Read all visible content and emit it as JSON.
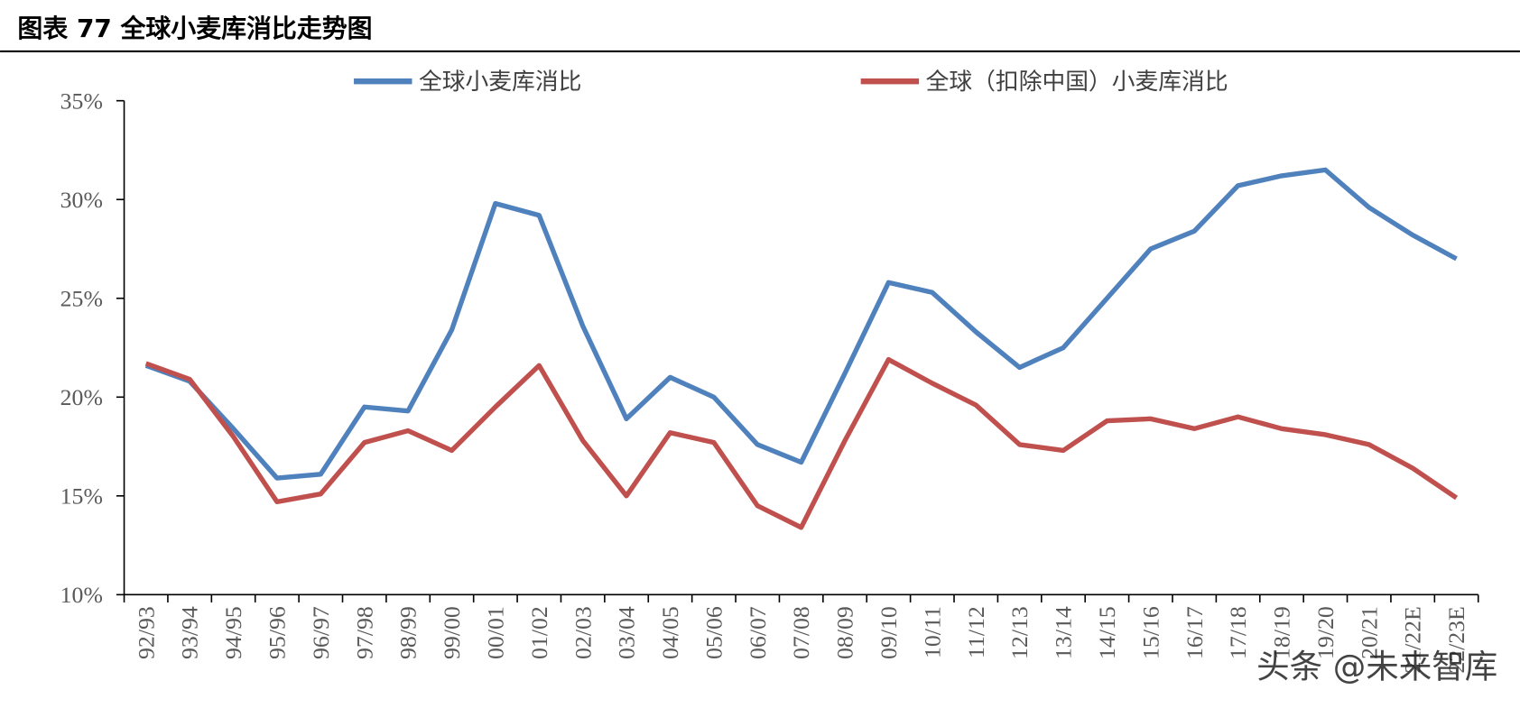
{
  "chart_data": {
    "type": "line",
    "title": "图表 77  全球小麦库消比走势图",
    "watermark": "头条 @未来智库",
    "categories": [
      "92/93",
      "93/94",
      "94/95",
      "95/96",
      "96/97",
      "97/98",
      "98/99",
      "99/00",
      "00/01",
      "01/02",
      "02/03",
      "03/04",
      "04/05",
      "05/06",
      "06/07",
      "07/08",
      "08/09",
      "09/10",
      "10/11",
      "11/12",
      "12/13",
      "13/14",
      "14/15",
      "15/16",
      "16/17",
      "17/18",
      "18/19",
      "19/20",
      "20/21",
      "21/22E",
      "22/23E"
    ],
    "series": [
      {
        "name": "全球小麦库消比",
        "color": "#4f81bd",
        "values": [
          21.6,
          20.8,
          18.4,
          15.9,
          16.1,
          19.5,
          19.3,
          23.4,
          29.8,
          29.2,
          23.6,
          18.9,
          21.0,
          20.0,
          17.6,
          16.7,
          21.2,
          25.8,
          25.3,
          23.3,
          21.5,
          22.5,
          25.0,
          27.5,
          28.4,
          30.7,
          31.2,
          31.5,
          29.6,
          28.2,
          27.0
        ]
      },
      {
        "name": "全球（扣除中国）小麦库消比",
        "color": "#c0504d",
        "values": [
          21.7,
          20.9,
          18.0,
          14.7,
          15.1,
          17.7,
          18.3,
          17.3,
          19.5,
          21.6,
          17.8,
          15.0,
          18.2,
          17.7,
          14.5,
          13.4,
          17.8,
          21.9,
          20.7,
          19.6,
          17.6,
          17.3,
          18.8,
          18.9,
          18.4,
          19.0,
          18.4,
          18.1,
          17.6,
          16.4,
          14.9
        ]
      }
    ],
    "ylim": [
      10,
      35
    ],
    "yticks": [
      {
        "value": 10,
        "label": "10%"
      },
      {
        "value": 15,
        "label": "15%"
      },
      {
        "value": 20,
        "label": "20%"
      },
      {
        "value": 25,
        "label": "25%"
      },
      {
        "value": 30,
        "label": "30%"
      },
      {
        "value": 35,
        "label": "35%"
      }
    ],
    "legend": "top"
  }
}
